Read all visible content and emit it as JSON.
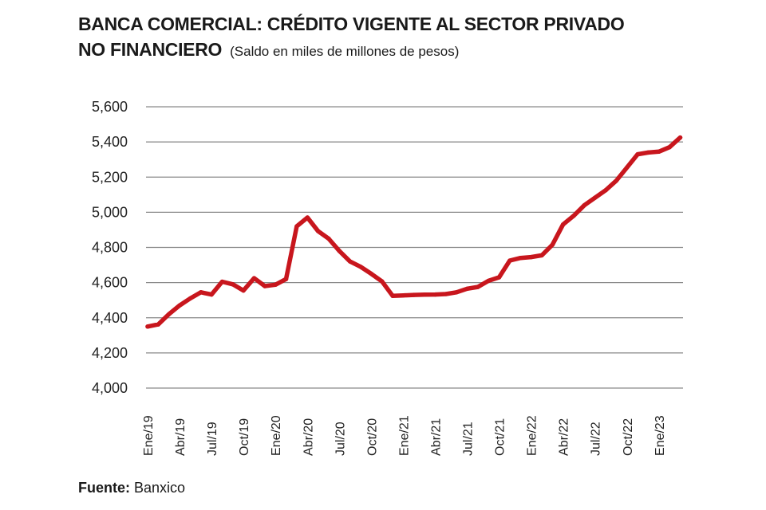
{
  "title_line1": "BANCA COMERCIAL: CRÉDITO VIGENTE AL SECTOR PRIVADO",
  "title_line2": "NO FINANCIERO",
  "subtitle": "(Saldo en miles de millones de pesos)",
  "source_label": "Fuente:",
  "source_value": "Banxico",
  "chart_data": {
    "type": "line",
    "title": "BANCA COMERCIAL: CRÉDITO VIGENTE AL SECTOR PRIVADO NO FINANCIERO",
    "subtitle": "(Saldo en miles de millones de pesos)",
    "xlabel": "",
    "ylabel": "",
    "ylim": [
      4000,
      5600
    ],
    "yticks": [
      4000,
      4200,
      4400,
      4600,
      4800,
      5000,
      5200,
      5400,
      5600
    ],
    "ytick_labels": [
      "4,000",
      "4,200",
      "4,400",
      "4,600",
      "4,800",
      "5,000",
      "5,200",
      "5,400",
      "5,600"
    ],
    "xtick_labels": [
      "Ene/19",
      "Abr/19",
      "Jul/19",
      "Oct/19",
      "Ene/20",
      "Abr/20",
      "Jul/20",
      "Oct/20",
      "Ene/21",
      "Abr/21",
      "Jul/21",
      "Oct/21",
      "Ene/22",
      "Abr/22",
      "Jul/22",
      "Oct/22",
      "Ene/23"
    ],
    "x_start": "2019-01",
    "x_end": "2023-03",
    "grid": "horizontal",
    "line_color": "#c8161d",
    "series": [
      {
        "values": [
          4350,
          4362,
          4420,
          4470,
          4510,
          4545,
          4532,
          4605,
          4590,
          4555,
          4625,
          4580,
          4588,
          4620,
          4920,
          4970,
          4893,
          4850,
          4780,
          4720,
          4690,
          4650,
          4607,
          4525,
          4527,
          4530,
          4531,
          4532,
          4535,
          4545,
          4565,
          4575,
          4610,
          4630,
          4725,
          4740,
          4745,
          4755,
          4815,
          4930,
          4980,
          5040,
          5083,
          5125,
          5180,
          5255,
          5330,
          5340,
          5345,
          5370,
          5425
        ]
      }
    ]
  }
}
